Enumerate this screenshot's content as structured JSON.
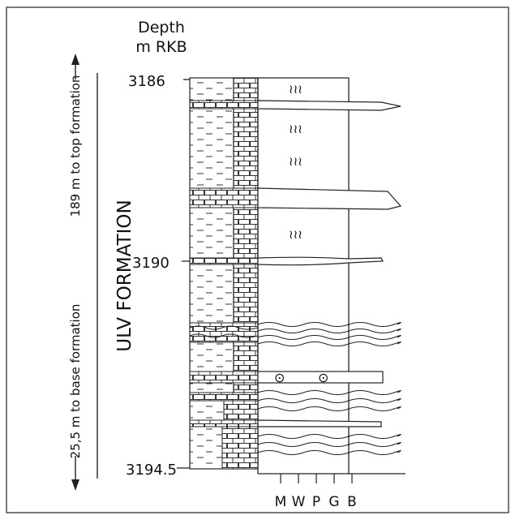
{
  "header": {
    "line1": "Depth",
    "line2": "m RKB"
  },
  "formation_label": "ULV FORMATION",
  "arrow_labels": {
    "top": "189 m to top formation",
    "base": "25,5 m to base formation"
  },
  "depth_ticks": [
    "3186",
    "3190",
    "3194.5"
  ],
  "grain_size_scale": [
    "M",
    "W",
    "P",
    "G",
    "B"
  ],
  "symbols": {
    "wavy": "≀≀≀",
    "ooid": "⊙"
  }
}
